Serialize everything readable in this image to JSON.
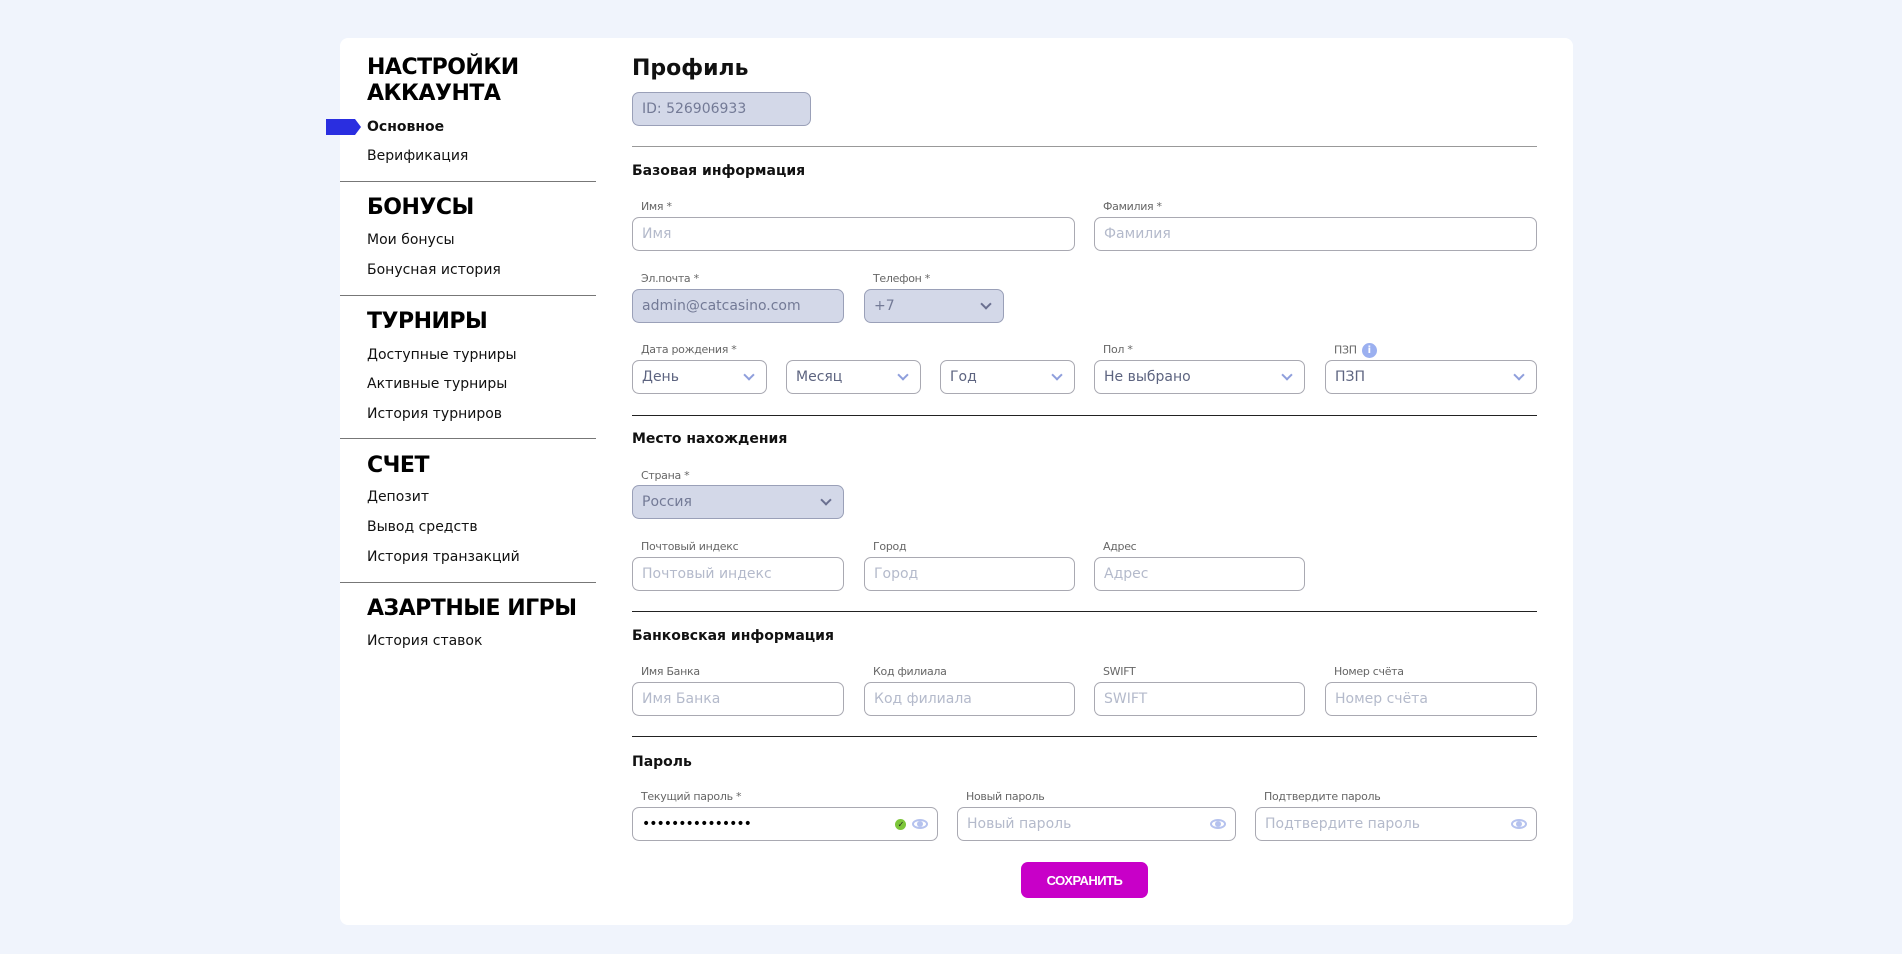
{
  "sidebar": {
    "sections": [
      {
        "title_line1": "НАСТРОЙКИ",
        "title_line2": "АККАУНТА",
        "items": [
          "Основное",
          "Верификация"
        ]
      },
      {
        "title": "БОНУСЫ",
        "items": [
          "Мои бонусы",
          "Бонусная история"
        ]
      },
      {
        "title": "ТУРНИРЫ",
        "items": [
          "Доступные турниры",
          "Активные турниры",
          "История турниров"
        ]
      },
      {
        "title": "СЧЕТ",
        "items": [
          "Депозит",
          "Вывод средств",
          "История транзакций"
        ]
      },
      {
        "title": "АЗАРТНЫЕ ИГРЫ",
        "items": [
          "История ставок"
        ]
      }
    ],
    "active_item": "Основное",
    "active_color": "#2a2ee0"
  },
  "profile": {
    "title": "Профиль",
    "id_value": "ID: 526906933",
    "basic": {
      "heading": "Базовая информация",
      "first_name": {
        "label": "Имя *",
        "placeholder": "Имя"
      },
      "last_name": {
        "label": "Фамилия *",
        "placeholder": "Фамилия"
      },
      "email": {
        "label": "Эл.почта *",
        "value": "admin@catcasino.com"
      },
      "phone": {
        "label": "Телефон *",
        "value": "+7"
      },
      "birth": {
        "label": "Дата рождения *",
        "day": "День",
        "month": "Месяц",
        "year": "Год"
      },
      "gender": {
        "label": "Пол *",
        "value": "Не выбрано"
      },
      "pzp": {
        "label": "ПЗП",
        "value": "ПЗП",
        "info_icon": "i"
      }
    },
    "location": {
      "heading": "Место нахождения",
      "country": {
        "label": "Страна *",
        "value": "Россия"
      },
      "postal": {
        "label": "Почтовый индекс",
        "placeholder": "Почтовый индекс"
      },
      "city": {
        "label": "Город",
        "placeholder": "Город"
      },
      "address": {
        "label": "Адрес",
        "placeholder": "Адрес"
      }
    },
    "bank": {
      "heading": "Банковская информация",
      "bank_name": {
        "label": "Имя Банка",
        "placeholder": "Имя Банка"
      },
      "branch": {
        "label": "Код филиала",
        "placeholder": "Код филиала"
      },
      "swift": {
        "label": "SWIFT",
        "placeholder": "SWIFT"
      },
      "account": {
        "label": "Номер счёта",
        "placeholder": "Номер счёта"
      }
    },
    "password": {
      "heading": "Пароль",
      "current": {
        "label": "Текущий пароль *",
        "value": "•••••••••••••••"
      },
      "new": {
        "label": "Новый пароль",
        "placeholder": "Новый пароль"
      },
      "confirm": {
        "label": "Подтвердите пароль",
        "placeholder": "Подтвердите пароль"
      }
    },
    "save_label": "СОХРАНИТЬ",
    "save_color": "#c800c8"
  }
}
